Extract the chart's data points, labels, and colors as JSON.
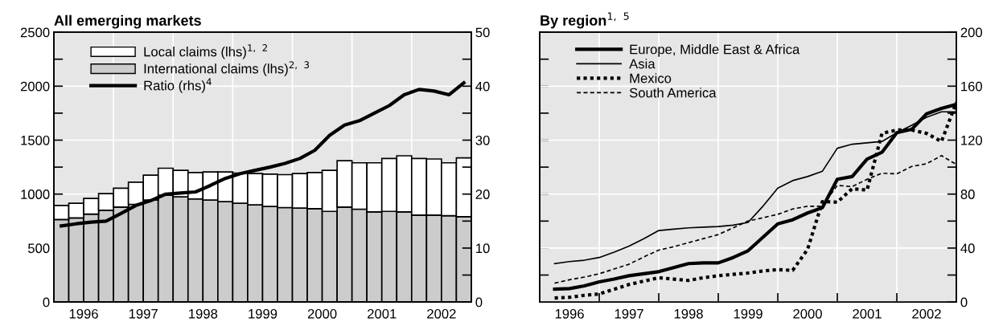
{
  "chart_data": [
    {
      "type": "bar",
      "title": "All emerging markets",
      "stacked": true,
      "legend": "top left",
      "grid": true,
      "x": [
        1996.125,
        1996.375,
        1996.625,
        1996.875,
        1997.125,
        1997.375,
        1997.625,
        1997.875,
        1998.125,
        1998.375,
        1998.625,
        1998.875,
        1999.125,
        1999.375,
        1999.625,
        1999.875,
        2000.125,
        2000.375,
        2000.625,
        2000.875,
        2001.125,
        2001.375,
        2001.625,
        2001.875,
        2002.125,
        2002.375,
        2002.625,
        2002.875
      ],
      "xlim": [
        1996,
        2003
      ],
      "xticks": [
        {
          "value": 1996.5,
          "label": "1996"
        },
        {
          "value": 1997,
          "label": null
        },
        {
          "value": 1997.5,
          "label": "1997"
        },
        {
          "value": 1998,
          "label": null
        },
        {
          "value": 1998.5,
          "label": "1998"
        },
        {
          "value": 1999,
          "label": null
        },
        {
          "value": 1999.5,
          "label": "1999"
        },
        {
          "value": 2000,
          "label": null
        },
        {
          "value": 2000.5,
          "label": "2000"
        },
        {
          "value": 2001,
          "label": null
        },
        {
          "value": 2001.5,
          "label": "2001"
        },
        {
          "value": 2002,
          "label": null
        },
        {
          "value": 2002.5,
          "label": "2002"
        }
      ],
      "ylim": [
        0,
        2500
      ],
      "yticks": [
        0,
        {
          "value": 250,
          "label": null
        },
        500,
        {
          "value": 750,
          "label": null
        },
        1000,
        {
          "value": 1250,
          "label": null
        },
        1500,
        {
          "value": 1750,
          "label": null
        },
        2000,
        {
          "value": 2250,
          "label": null
        },
        2500
      ],
      "y2lim": [
        0,
        50
      ],
      "y2ticks": [
        0,
        {
          "value": 5,
          "label": null
        },
        10,
        {
          "value": 15,
          "label": null
        },
        20,
        {
          "value": 25,
          "label": null
        },
        30,
        {
          "value": 35,
          "label": null
        },
        40,
        {
          "value": 45,
          "label": null
        },
        50
      ],
      "series": [
        {
          "name": "International claims (lhs)$^{2,}$ $^{3}$",
          "color": "#cccccc",
          "values": [
            765,
            780,
            815,
            850,
            880,
            905,
            945,
            990,
            975,
            955,
            945,
            930,
            915,
            900,
            885,
            875,
            870,
            865,
            840,
            880,
            860,
            835,
            840,
            835,
            805,
            805,
            800,
            790
          ]
        },
        {
          "name": "Local claims (lhs)$^{1,}$ $^{2}$",
          "color": "#ffffff",
          "values": [
            130,
            135,
            145,
            155,
            175,
            205,
            230,
            250,
            245,
            245,
            260,
            275,
            280,
            290,
            300,
            305,
            320,
            335,
            380,
            430,
            430,
            455,
            490,
            520,
            525,
            520,
            490,
            545
          ]
        },
        {
          "name": "Ratio (rhs)$^{4}$",
          "type": "line",
          "axis": "y2",
          "color": "#000000",
          "line_style": "solid",
          "values": [
            14.1,
            14.5,
            14.8,
            15.0,
            16.4,
            17.9,
            18.8,
            20.0,
            20.2,
            20.4,
            21.6,
            22.9,
            23.8,
            24.4,
            25.0,
            25.7,
            26.6,
            28.1,
            30.9,
            32.8,
            33.6,
            35.0,
            36.4,
            38.4,
            39.4,
            39.1,
            38.4,
            40.6
          ]
        }
      ]
    },
    {
      "type": "line",
      "title": "By region$^{1,}$ $^{5}$",
      "legend": "top left",
      "grid": true,
      "x": [
        1996.25,
        1996.5,
        1996.75,
        1997,
        1997.25,
        1997.5,
        1997.75,
        1998,
        1998.25,
        1998.5,
        1998.75,
        1999,
        1999.25,
        1999.5,
        1999.75,
        2000,
        2000.25,
        2000.5,
        2000.75,
        2001,
        2001.25,
        2001.5,
        2001.75,
        2002,
        2002.25,
        2002.5,
        2002.75,
        2003
      ],
      "xlim": [
        1996,
        2003
      ],
      "xticks": [
        {
          "value": 1996.5,
          "label": "1996"
        },
        {
          "value": 1997,
          "label": null
        },
        {
          "value": 1997.5,
          "label": "1997"
        },
        {
          "value": 1998,
          "label": null
        },
        {
          "value": 1998.5,
          "label": "1998"
        },
        {
          "value": 1999,
          "label": null
        },
        {
          "value": 1999.5,
          "label": "1999"
        },
        {
          "value": 2000,
          "label": null
        },
        {
          "value": 2000.5,
          "label": "2000"
        },
        {
          "value": 2001,
          "label": null
        },
        {
          "value": 2001.5,
          "label": "2001"
        },
        {
          "value": 2002,
          "label": null
        },
        {
          "value": 2002.5,
          "label": "2002"
        }
      ],
      "y2lim": [
        0,
        200
      ],
      "y2ticks": [
        0,
        {
          "value": 20,
          "label": null
        },
        40,
        {
          "value": 60,
          "label": null
        },
        80,
        {
          "value": 100,
          "label": null
        },
        120,
        {
          "value": 140,
          "label": null
        },
        160,
        {
          "value": 180,
          "label": null
        },
        200
      ],
      "series": [
        {
          "name": "Europe, Middle East & Africa",
          "axis": "y2",
          "color": "#000000",
          "line_style": "solid",
          "values": [
            9.5,
            10,
            12,
            15,
            17,
            19.5,
            21,
            22.5,
            25.5,
            28.5,
            29,
            29,
            33,
            38,
            48,
            58,
            61,
            66,
            70,
            91,
            93,
            106,
            111,
            125.5,
            128,
            139.5,
            143.5,
            146.5
          ]
        },
        {
          "name": "Asia",
          "axis": "y2",
          "color": "#000000",
          "line_style": "solid",
          "values": [
            28.5,
            30,
            31,
            33,
            37,
            41.5,
            47,
            53,
            54,
            55,
            55.5,
            56,
            57,
            59,
            71,
            84.5,
            90,
            93,
            97,
            114,
            117,
            118,
            119,
            125.5,
            131,
            137,
            141,
            141
          ]
        },
        {
          "name": "Mexico",
          "axis": "y2",
          "color": "#000000",
          "line_style": "dotted",
          "values": [
            3,
            3.5,
            5,
            6,
            9.5,
            13,
            15.5,
            18,
            17,
            16,
            18,
            19.5,
            20.5,
            21.5,
            23,
            24,
            23.5,
            39,
            74.5,
            74,
            84,
            83,
            125,
            127.5,
            127.5,
            125,
            119,
            148
          ]
        },
        {
          "name": "South America",
          "axis": "y2",
          "color": "#000000",
          "line_style": "dashed",
          "values": [
            14,
            16.5,
            18.5,
            21,
            24.5,
            28,
            33.5,
            38.5,
            41,
            44,
            47,
            50,
            55,
            60,
            62.5,
            65,
            69,
            71,
            71,
            86.5,
            85.5,
            91,
            95.5,
            95,
            100.5,
            102.5,
            108.5,
            102
          ]
        }
      ]
    }
  ]
}
